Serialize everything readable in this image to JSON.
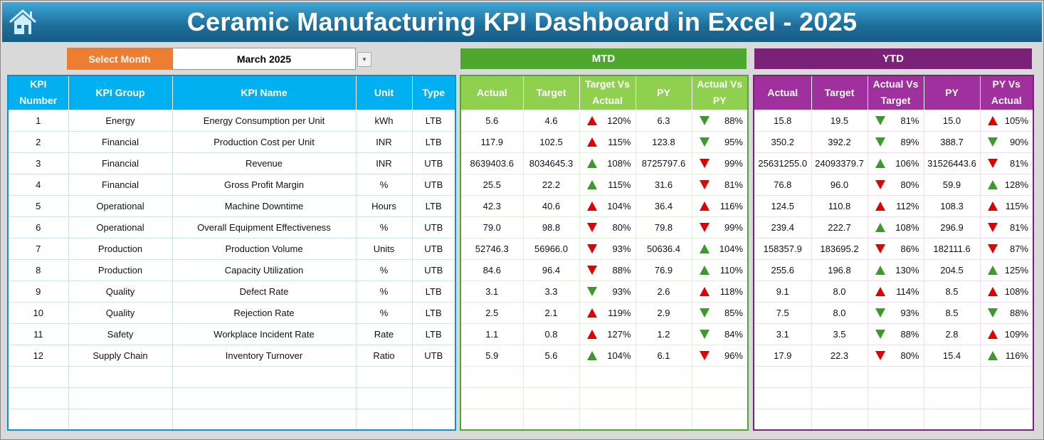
{
  "title": "Ceramic Manufacturing KPI Dashboard in Excel - 2025",
  "home_icon": "home-icon",
  "selector": {
    "label": "Select Month",
    "value": "March 2025"
  },
  "colors": {
    "good": "#3a9a2a",
    "bad": "#e00000",
    "left_header": "#00b0f0",
    "mtd_header": "#8fd14f",
    "mtd_band": "#4ea72e",
    "ytd_header": "#a0309e",
    "ytd_band": "#7a2277",
    "select": "#ed7d31"
  },
  "sections": {
    "mtd": "MTD",
    "ytd": "YTD"
  },
  "left_headers": [
    "KPI Number",
    "KPI Group",
    "KPI Name",
    "Unit",
    "Type"
  ],
  "mtd_headers": [
    "Actual",
    "Target",
    "Target Vs Actual",
    "PY",
    "Actual Vs PY"
  ],
  "ytd_headers": [
    "Actual",
    "Target",
    "Actual Vs Target",
    "PY",
    "PY Vs Actual"
  ],
  "rows": [
    {
      "num": "1",
      "group": "Energy",
      "name": "Energy Consumption per Unit",
      "unit": "kWh",
      "type": "LTB",
      "mtd": [
        "5.6",
        "4.6",
        {
          "dir": "up",
          "status": "bad",
          "pct": "120%"
        },
        "6.3",
        {
          "dir": "down",
          "status": "good",
          "pct": "88%"
        }
      ],
      "ytd": [
        "15.8",
        "19.5",
        {
          "dir": "down",
          "status": "good",
          "pct": "81%"
        },
        "15.0",
        {
          "dir": "up",
          "status": "bad",
          "pct": "105%"
        }
      ]
    },
    {
      "num": "2",
      "group": "Financial",
      "name": "Production Cost per Unit",
      "unit": "INR",
      "type": "LTB",
      "mtd": [
        "117.9",
        "102.5",
        {
          "dir": "up",
          "status": "bad",
          "pct": "115%"
        },
        "123.8",
        {
          "dir": "down",
          "status": "good",
          "pct": "95%"
        }
      ],
      "ytd": [
        "350.2",
        "392.2",
        {
          "dir": "down",
          "status": "good",
          "pct": "89%"
        },
        "388.7",
        {
          "dir": "down",
          "status": "good",
          "pct": "90%"
        }
      ]
    },
    {
      "num": "3",
      "group": "Financial",
      "name": "Revenue",
      "unit": "INR",
      "type": "UTB",
      "mtd": [
        "8639403.6",
        "8034645.3",
        {
          "dir": "up",
          "status": "good",
          "pct": "108%"
        },
        "8725797.6",
        {
          "dir": "down",
          "status": "bad",
          "pct": "99%"
        }
      ],
      "ytd": [
        "25631255.0",
        "24093379.7",
        {
          "dir": "up",
          "status": "good",
          "pct": "106%"
        },
        "31526443.6",
        {
          "dir": "down",
          "status": "bad",
          "pct": "81%"
        }
      ]
    },
    {
      "num": "4",
      "group": "Financial",
      "name": "Gross Profit Margin",
      "unit": "%",
      "type": "UTB",
      "mtd": [
        "25.5",
        "22.2",
        {
          "dir": "up",
          "status": "good",
          "pct": "115%"
        },
        "31.6",
        {
          "dir": "down",
          "status": "bad",
          "pct": "81%"
        }
      ],
      "ytd": [
        "76.8",
        "96.0",
        {
          "dir": "down",
          "status": "bad",
          "pct": "80%"
        },
        "59.9",
        {
          "dir": "up",
          "status": "good",
          "pct": "128%"
        }
      ]
    },
    {
      "num": "5",
      "group": "Operational",
      "name": "Machine Downtime",
      "unit": "Hours",
      "type": "LTB",
      "mtd": [
        "42.3",
        "40.6",
        {
          "dir": "up",
          "status": "bad",
          "pct": "104%"
        },
        "36.4",
        {
          "dir": "up",
          "status": "bad",
          "pct": "116%"
        }
      ],
      "ytd": [
        "124.5",
        "110.8",
        {
          "dir": "up",
          "status": "bad",
          "pct": "112%"
        },
        "108.3",
        {
          "dir": "up",
          "status": "bad",
          "pct": "115%"
        }
      ]
    },
    {
      "num": "6",
      "group": "Operational",
      "name": "Overall Equipment Effectiveness",
      "unit": "%",
      "type": "UTB",
      "mtd": [
        "79.0",
        "98.8",
        {
          "dir": "down",
          "status": "bad",
          "pct": "80%"
        },
        "79.8",
        {
          "dir": "down",
          "status": "bad",
          "pct": "99%"
        }
      ],
      "ytd": [
        "239.4",
        "222.7",
        {
          "dir": "up",
          "status": "good",
          "pct": "108%"
        },
        "296.9",
        {
          "dir": "down",
          "status": "bad",
          "pct": "81%"
        }
      ]
    },
    {
      "num": "7",
      "group": "Production",
      "name": "Production Volume",
      "unit": "Units",
      "type": "UTB",
      "mtd": [
        "52746.3",
        "56966.0",
        {
          "dir": "down",
          "status": "bad",
          "pct": "93%"
        },
        "50636.4",
        {
          "dir": "up",
          "status": "good",
          "pct": "104%"
        }
      ],
      "ytd": [
        "158357.9",
        "183695.2",
        {
          "dir": "down",
          "status": "bad",
          "pct": "86%"
        },
        "182111.6",
        {
          "dir": "down",
          "status": "bad",
          "pct": "87%"
        }
      ]
    },
    {
      "num": "8",
      "group": "Production",
      "name": "Capacity Utilization",
      "unit": "%",
      "type": "UTB",
      "mtd": [
        "84.6",
        "96.4",
        {
          "dir": "down",
          "status": "bad",
          "pct": "88%"
        },
        "76.9",
        {
          "dir": "up",
          "status": "good",
          "pct": "110%"
        }
      ],
      "ytd": [
        "255.6",
        "196.8",
        {
          "dir": "up",
          "status": "good",
          "pct": "130%"
        },
        "204.5",
        {
          "dir": "up",
          "status": "good",
          "pct": "125%"
        }
      ]
    },
    {
      "num": "9",
      "group": "Quality",
      "name": "Defect Rate",
      "unit": "%",
      "type": "LTB",
      "mtd": [
        "3.1",
        "3.3",
        {
          "dir": "down",
          "status": "good",
          "pct": "93%"
        },
        "2.6",
        {
          "dir": "up",
          "status": "bad",
          "pct": "118%"
        }
      ],
      "ytd": [
        "9.1",
        "8.0",
        {
          "dir": "up",
          "status": "bad",
          "pct": "114%"
        },
        "8.5",
        {
          "dir": "up",
          "status": "bad",
          "pct": "108%"
        }
      ]
    },
    {
      "num": "10",
      "group": "Quality",
      "name": "Rejection Rate",
      "unit": "%",
      "type": "LTB",
      "mtd": [
        "2.5",
        "2.1",
        {
          "dir": "up",
          "status": "bad",
          "pct": "119%"
        },
        "2.9",
        {
          "dir": "down",
          "status": "good",
          "pct": "85%"
        }
      ],
      "ytd": [
        "7.5",
        "8.0",
        {
          "dir": "down",
          "status": "good",
          "pct": "93%"
        },
        "8.5",
        {
          "dir": "down",
          "status": "good",
          "pct": "88%"
        }
      ]
    },
    {
      "num": "11",
      "group": "Safety",
      "name": "Workplace Incident Rate",
      "unit": "Rate",
      "type": "LTB",
      "mtd": [
        "1.1",
        "0.8",
        {
          "dir": "up",
          "status": "bad",
          "pct": "127%"
        },
        "1.2",
        {
          "dir": "down",
          "status": "good",
          "pct": "84%"
        }
      ],
      "ytd": [
        "3.1",
        "3.5",
        {
          "dir": "down",
          "status": "good",
          "pct": "88%"
        },
        "2.8",
        {
          "dir": "up",
          "status": "bad",
          "pct": "109%"
        }
      ]
    },
    {
      "num": "12",
      "group": "Supply Chain",
      "name": "Inventory Turnover",
      "unit": "Ratio",
      "type": "UTB",
      "mtd": [
        "5.9",
        "5.6",
        {
          "dir": "up",
          "status": "good",
          "pct": "104%"
        },
        "6.1",
        {
          "dir": "down",
          "status": "bad",
          "pct": "96%"
        }
      ],
      "ytd": [
        "17.9",
        "22.3",
        {
          "dir": "down",
          "status": "bad",
          "pct": "80%"
        },
        "15.4",
        {
          "dir": "up",
          "status": "good",
          "pct": "116%"
        }
      ]
    }
  ]
}
